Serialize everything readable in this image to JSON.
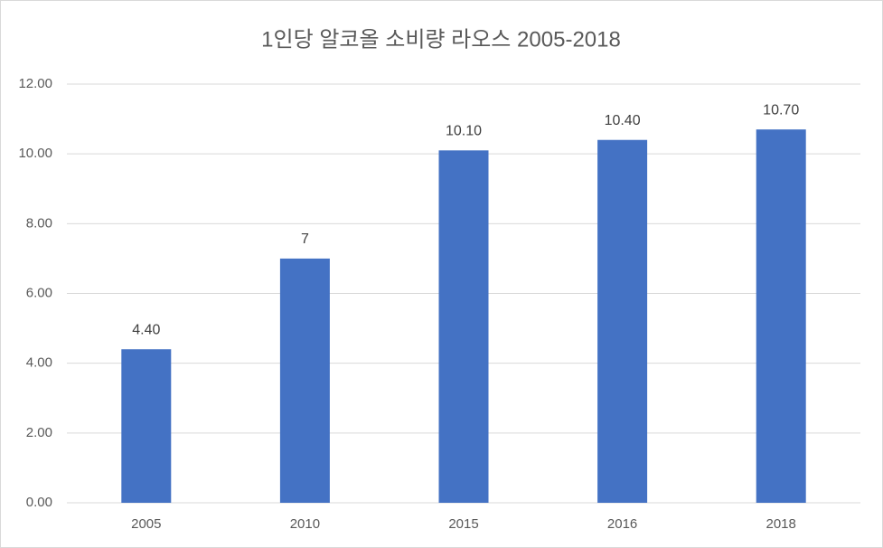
{
  "chart_data": {
    "type": "bar",
    "title": "1인당 알코올 소비량 라오스 2005-2018",
    "categories": [
      "2005",
      "2010",
      "2015",
      "2016",
      "2018"
    ],
    "values": [
      4.4,
      7,
      10.1,
      10.4,
      10.7
    ],
    "value_labels": [
      "4.40",
      "7",
      "10.10",
      "10.40",
      "10.70"
    ],
    "color": "#4472c4",
    "ylim": [
      0,
      12
    ],
    "yticks": [
      {
        "value": 0,
        "label": "0.00"
      },
      {
        "value": 2,
        "label": "2.00"
      },
      {
        "value": 4,
        "label": "4.00"
      },
      {
        "value": 6,
        "label": "6.00"
      },
      {
        "value": 8,
        "label": "8.00"
      },
      {
        "value": 10,
        "label": "10.00"
      },
      {
        "value": 12,
        "label": "12.00"
      }
    ],
    "grid": true
  }
}
